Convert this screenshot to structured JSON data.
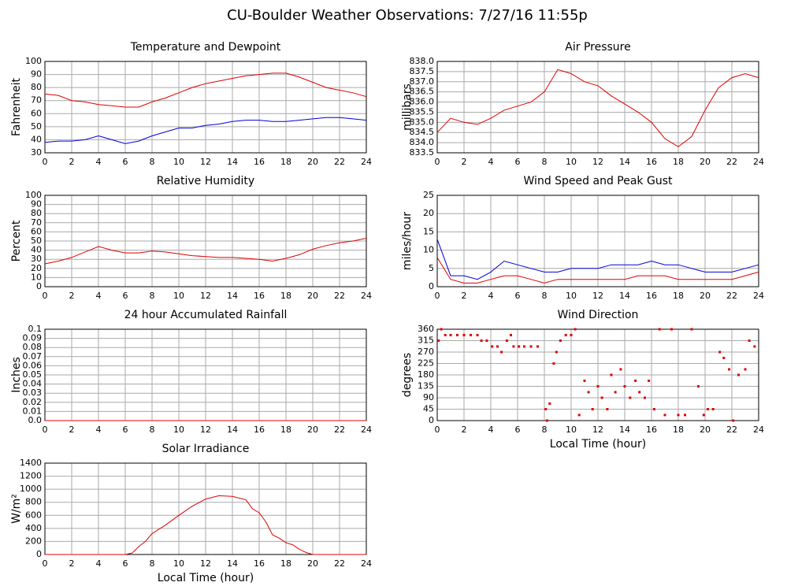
{
  "title": "CU-Boulder Weather Observations: 7/27/16 11:55p",
  "chart_data": [
    {
      "type": "line",
      "title": "Temperature and Dewpoint",
      "ylabel": "Fahrenheit",
      "x": [
        0,
        1,
        2,
        3,
        4,
        5,
        6,
        7,
        8,
        9,
        10,
        11,
        12,
        13,
        14,
        15,
        16,
        17,
        18,
        19,
        20,
        21,
        22,
        23,
        24
      ],
      "series": [
        {
          "color": "#e00000",
          "values": [
            75,
            74,
            70,
            69,
            67,
            66,
            65,
            65,
            69,
            72,
            76,
            80,
            83,
            85,
            87,
            89,
            90,
            91,
            91,
            88,
            84,
            80,
            78,
            76,
            73
          ]
        },
        {
          "color": "#0000dd",
          "values": [
            38,
            39,
            39,
            40,
            43,
            40,
            37,
            39,
            43,
            46,
            49,
            49,
            51,
            52,
            54,
            55,
            55,
            54,
            54,
            55,
            56,
            57,
            57,
            56,
            55
          ]
        }
      ],
      "xlim": [
        0,
        24
      ],
      "xticks": [
        0,
        2,
        4,
        6,
        8,
        10,
        12,
        14,
        16,
        18,
        20,
        22,
        24
      ],
      "ylim": [
        30,
        100
      ],
      "yticks": [
        30,
        40,
        50,
        60,
        70,
        80,
        90,
        100
      ],
      "grid": true
    },
    {
      "type": "line",
      "title": "Air Pressure",
      "ylabel": "millibars",
      "x": [
        0,
        1,
        2,
        3,
        4,
        5,
        6,
        7,
        8,
        9,
        10,
        11,
        12,
        13,
        14,
        15,
        16,
        17,
        18,
        19,
        20,
        21,
        22,
        23,
        24
      ],
      "series": [
        {
          "color": "#e00000",
          "values": [
            834.5,
            835.2,
            835.0,
            834.9,
            835.2,
            835.6,
            835.8,
            836.0,
            836.5,
            837.6,
            837.4,
            837.0,
            836.8,
            836.3,
            835.9,
            835.5,
            835.0,
            834.2,
            833.8,
            834.3,
            835.6,
            836.7,
            837.2,
            837.4,
            837.2
          ]
        }
      ],
      "xlim": [
        0,
        24
      ],
      "xticks": [
        0,
        2,
        4,
        6,
        8,
        10,
        12,
        14,
        16,
        18,
        20,
        22,
        24
      ],
      "ylim": [
        833.5,
        838.0
      ],
      "yticks": [
        833.5,
        {
          "value": 834,
          "label": "834.0"
        },
        834.5,
        {
          "value": 835,
          "label": "835.0"
        },
        835.5,
        {
          "value": 836,
          "label": "836.0"
        },
        836.5,
        {
          "value": 837,
          "label": "837.0"
        },
        837.5,
        {
          "value": 838,
          "label": "838.0"
        }
      ],
      "grid": true
    },
    {
      "type": "line",
      "title": "Relative Humidity",
      "ylabel": "Percent",
      "x": [
        0,
        1,
        2,
        3,
        4,
        5,
        6,
        7,
        8,
        9,
        10,
        11,
        12,
        13,
        14,
        15,
        16,
        17,
        18,
        19,
        20,
        21,
        22,
        23,
        24
      ],
      "series": [
        {
          "color": "#e00000",
          "values": [
            25,
            28,
            32,
            38,
            44,
            40,
            37,
            37,
            39,
            38,
            36,
            34,
            33,
            32,
            32,
            31,
            30,
            28,
            31,
            35,
            41,
            45,
            48,
            50,
            53
          ]
        }
      ],
      "xlim": [
        0,
        24
      ],
      "xticks": [
        0,
        2,
        4,
        6,
        8,
        10,
        12,
        14,
        16,
        18,
        20,
        22,
        24
      ],
      "ylim": [
        0,
        100
      ],
      "yticks": [
        0,
        10,
        20,
        30,
        40,
        50,
        60,
        70,
        80,
        90,
        100
      ],
      "grid": true
    },
    {
      "type": "line",
      "title": "Wind Speed and Peak Gust",
      "ylabel": "miles/hour",
      "x": [
        0,
        1,
        2,
        3,
        4,
        5,
        6,
        7,
        8,
        9,
        10,
        11,
        12,
        13,
        14,
        15,
        16,
        17,
        18,
        19,
        20,
        21,
        22,
        23,
        24
      ],
      "series": [
        {
          "color": "#0000dd",
          "values": [
            13,
            3,
            3,
            2,
            4,
            7,
            6,
            5,
            4,
            4,
            5,
            5,
            5,
            6,
            6,
            6,
            7,
            6,
            6,
            5,
            4,
            4,
            4,
            5,
            6
          ]
        },
        {
          "color": "#e00000",
          "values": [
            8,
            2,
            1,
            1,
            2,
            3,
            3,
            2,
            1,
            2,
            2,
            2,
            2,
            2,
            2,
            3,
            3,
            3,
            2,
            2,
            2,
            2,
            2,
            3,
            4
          ]
        }
      ],
      "xlim": [
        0,
        24
      ],
      "xticks": [
        0,
        2,
        4,
        6,
        8,
        10,
        12,
        14,
        16,
        18,
        20,
        22,
        24
      ],
      "ylim": [
        0,
        25
      ],
      "yticks": [
        0,
        5,
        10,
        15,
        20,
        25
      ],
      "grid": true
    },
    {
      "type": "line",
      "title": "24 hour Accumulated Rainfall",
      "ylabel": "Inches",
      "x": [
        0,
        24
      ],
      "series": [
        {
          "color": "#e00000",
          "values": [
            0,
            0
          ]
        }
      ],
      "xlim": [
        0,
        24
      ],
      "xticks": [
        0,
        2,
        4,
        6,
        8,
        10,
        12,
        14,
        16,
        18,
        20,
        22,
        24
      ],
      "ylim": [
        0,
        0.1
      ],
      "yticks": [
        {
          "value": 0,
          "label": "0.0"
        },
        0.01,
        0.02,
        0.03,
        0.04,
        0.05,
        0.06,
        0.07,
        0.08,
        0.09,
        0.1
      ],
      "grid": true
    },
    {
      "type": "scatter",
      "title": "Wind Direction",
      "ylabel": "degrees",
      "xlabel": "Local Time (hour)",
      "color": "#e00000",
      "x": [
        0.1,
        0.3,
        0.6,
        1,
        1.5,
        2,
        2.5,
        3,
        3.3,
        3.7,
        4.1,
        4.5,
        4.8,
        5.2,
        5.5,
        5.7,
        6.1,
        6.5,
        7,
        7.5,
        8.1,
        8.2,
        8.4,
        8.7,
        8.9,
        9.2,
        9.6,
        10,
        10.3,
        10.6,
        11,
        11.3,
        11.6,
        12,
        12.3,
        12.7,
        13,
        13.3,
        13.7,
        14,
        14.4,
        14.8,
        15.1,
        15.5,
        15.8,
        16.2,
        16.6,
        17,
        17.5,
        18,
        18.5,
        19,
        19.5,
        19.9,
        20.2,
        20.6,
        21.1,
        21.4,
        21.8,
        22.1,
        22.5,
        23,
        23.3,
        23.7
      ],
      "values": [
        315,
        360,
        337,
        337,
        337,
        337,
        337,
        337,
        315,
        315,
        292,
        292,
        270,
        315,
        337,
        292,
        292,
        292,
        292,
        292,
        45,
        0,
        67,
        225,
        270,
        315,
        337,
        337,
        360,
        22,
        157,
        112,
        45,
        135,
        90,
        45,
        180,
        112,
        202,
        135,
        90,
        157,
        112,
        90,
        157,
        45,
        360,
        22,
        360,
        22,
        22,
        360,
        135,
        22,
        45,
        45,
        270,
        247,
        202,
        0,
        180,
        202,
        315,
        292
      ],
      "xlim": [
        0,
        24
      ],
      "xticks": [
        0,
        2,
        4,
        6,
        8,
        10,
        12,
        14,
        16,
        18,
        20,
        22,
        24
      ],
      "ylim": [
        0,
        360
      ],
      "yticks": [
        0,
        45,
        90,
        135,
        180,
        225,
        270,
        315,
        360
      ],
      "grid": true
    },
    {
      "type": "line",
      "title": "Solar Irradiance",
      "ylabel": "W/m²",
      "xlabel": "Local Time (hour)",
      "x": [
        0,
        6,
        6.5,
        7,
        7.5,
        8,
        9,
        10,
        11,
        12,
        13,
        14,
        15,
        15.5,
        16,
        16.5,
        17,
        17.5,
        18,
        18.5,
        19,
        19.5,
        20,
        24
      ],
      "series": [
        {
          "color": "#e00000",
          "values": [
            0,
            0,
            20,
            120,
            200,
            320,
            450,
            600,
            740,
            850,
            900,
            890,
            840,
            700,
            640,
            500,
            300,
            250,
            180,
            150,
            80,
            30,
            0,
            0
          ]
        }
      ],
      "xlim": [
        0,
        24
      ],
      "xticks": [
        0,
        2,
        4,
        6,
        8,
        10,
        12,
        14,
        16,
        18,
        20,
        22,
        24
      ],
      "ylim": [
        0,
        1400
      ],
      "yticks": [
        0,
        200,
        400,
        600,
        800,
        1000,
        1200,
        1400
      ],
      "grid": true
    }
  ]
}
